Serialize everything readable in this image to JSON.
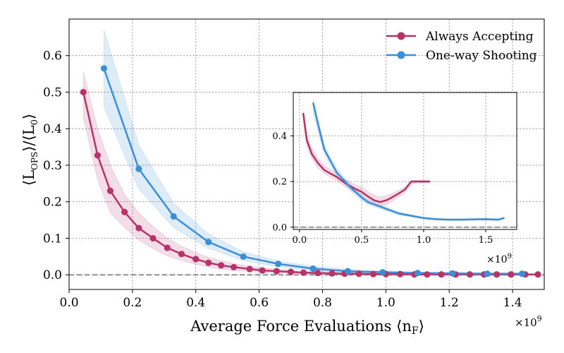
{
  "chart_data": [
    {
      "id": "main",
      "type": "line",
      "title": "",
      "xlabel": "Average Force Evaluations ⟨n",
      "xlabel_sub": "F",
      "xlabel_end": "⟩",
      "ylabel": "⟨L",
      "ylabel_sub": "OPS",
      "ylabel_mid": "⟩/⟨L",
      "ylabel_sub2": "0",
      "ylabel_end": "⟩",
      "x_offset_label": "×10",
      "x_offset_exp": "9",
      "xlim": [
        0.0,
        1.5
      ],
      "ylim": [
        -0.04,
        0.7
      ],
      "xticks": [
        0.0,
        0.2,
        0.4,
        0.6,
        0.8,
        1.0,
        1.2,
        1.4
      ],
      "xtick_labels": [
        "0.0",
        "0.2",
        "0.4",
        "0.6",
        "0.8",
        "1.0",
        "1.2",
        "1.4"
      ],
      "yticks": [
        0.0,
        0.1,
        0.2,
        0.3,
        0.4,
        0.5,
        0.6
      ],
      "ytick_labels": [
        "0.0",
        "0.1",
        "0.2",
        "0.3",
        "0.4",
        "0.5",
        "0.6"
      ],
      "grid": true,
      "reference_line": 0.0,
      "legend_position": "top-right",
      "series": [
        {
          "name": "Always Accepting",
          "color": "#b8336a",
          "x": [
            0.045,
            0.09,
            0.13,
            0.175,
            0.22,
            0.265,
            0.31,
            0.355,
            0.4,
            0.44,
            0.48,
            0.52,
            0.57,
            0.61,
            0.655,
            0.7,
            0.74,
            0.785,
            0.83,
            0.87,
            0.915,
            0.96,
            1.0,
            1.045,
            1.09,
            1.13,
            1.175,
            1.22,
            1.265,
            1.31,
            1.35,
            1.395,
            1.44,
            1.48
          ],
          "y": [
            0.5,
            0.327,
            0.23,
            0.172,
            0.128,
            0.1,
            0.074,
            0.057,
            0.043,
            0.033,
            0.026,
            0.021,
            0.016,
            0.012,
            0.01,
            0.008,
            0.006,
            0.005,
            0.004,
            0.003,
            0.003,
            0.002,
            0.002,
            0.002,
            0.001,
            0.001,
            0.001,
            0.001,
            0.001,
            0.001,
            0.001,
            0.001,
            0.001,
            0.001
          ],
          "lower": [
            0.43,
            0.26,
            0.17,
            0.13,
            0.095,
            0.072,
            0.052,
            0.039,
            0.029,
            0.021,
            0.016,
            0.012,
            0.009,
            0.006,
            0.005,
            0.004,
            0.003,
            0.002,
            0.001,
            0.0,
            0.0,
            -0.001,
            -0.001,
            -0.001,
            -0.001,
            -0.001,
            -0.001,
            -0.001,
            -0.001,
            -0.001,
            -0.001,
            -0.001,
            -0.001,
            -0.001
          ],
          "upper": [
            0.555,
            0.4,
            0.3,
            0.22,
            0.17,
            0.132,
            0.1,
            0.078,
            0.061,
            0.048,
            0.039,
            0.031,
            0.024,
            0.019,
            0.016,
            0.013,
            0.01,
            0.008,
            0.007,
            0.006,
            0.005,
            0.004,
            0.004,
            0.004,
            0.003,
            0.003,
            0.003,
            0.003,
            0.003,
            0.003,
            0.003,
            0.003,
            0.003,
            0.003
          ]
        },
        {
          "name": "One-way Shooting",
          "color": "#3a8fd6",
          "x": [
            0.11,
            0.22,
            0.33,
            0.44,
            0.55,
            0.66,
            0.77,
            0.88,
            0.99,
            1.1,
            1.21,
            1.32,
            1.43
          ],
          "y": [
            0.565,
            0.29,
            0.16,
            0.09,
            0.05,
            0.03,
            0.017,
            0.01,
            0.007,
            0.005,
            0.004,
            0.003,
            0.003
          ],
          "lower": [
            0.46,
            0.235,
            0.13,
            0.072,
            0.039,
            0.022,
            0.011,
            0.006,
            0.004,
            0.002,
            0.001,
            0.001,
            0.001
          ],
          "upper": [
            0.67,
            0.355,
            0.195,
            0.112,
            0.063,
            0.038,
            0.024,
            0.015,
            0.011,
            0.008,
            0.007,
            0.006,
            0.006
          ]
        }
      ]
    },
    {
      "id": "inset",
      "type": "line",
      "title": "",
      "xlim": [
        -0.05,
        1.75
      ],
      "ylim": [
        -0.01,
        0.59
      ],
      "xticks": [
        0.0,
        0.5,
        1.0,
        1.5
      ],
      "xtick_labels": [
        "0.0",
        "0.5",
        "1.0",
        "1.5"
      ],
      "yticks": [
        0.0,
        0.2,
        0.4
      ],
      "ytick_labels": [
        "0.0",
        "0.2",
        "0.4"
      ],
      "x_offset_label": "×10",
      "x_offset_exp": "9",
      "grid": true,
      "reference_line": 0.0,
      "series": [
        {
          "name": "Always Accepting",
          "color": "#b8336a",
          "x": [
            0.03,
            0.06,
            0.1,
            0.15,
            0.2,
            0.25,
            0.3,
            0.35,
            0.4,
            0.45,
            0.5,
            0.55,
            0.6,
            0.65,
            0.7,
            0.75,
            0.8,
            0.85,
            0.9,
            0.95,
            1.0,
            1.05
          ],
          "y": [
            0.5,
            0.38,
            0.32,
            0.28,
            0.25,
            0.235,
            0.22,
            0.2,
            0.182,
            0.168,
            0.155,
            0.135,
            0.118,
            0.11,
            0.118,
            0.132,
            0.148,
            0.165,
            0.2,
            0.2,
            0.2,
            0.2
          ],
          "lower": [
            0.46,
            0.35,
            0.3,
            0.26,
            0.235,
            0.22,
            0.205,
            0.185,
            0.167,
            0.15,
            0.135,
            0.113,
            0.097,
            0.09,
            0.098,
            0.115,
            0.133,
            0.152,
            0.19,
            0.195,
            0.195,
            0.195
          ],
          "upper": [
            0.51,
            0.4,
            0.345,
            0.3,
            0.27,
            0.252,
            0.235,
            0.215,
            0.198,
            0.185,
            0.175,
            0.157,
            0.14,
            0.132,
            0.138,
            0.148,
            0.162,
            0.177,
            0.205,
            0.205,
            0.205,
            0.205
          ]
        },
        {
          "name": "One-way Shooting",
          "color": "#3a8fd6",
          "x": [
            0.11,
            0.15,
            0.2,
            0.25,
            0.3,
            0.35,
            0.4,
            0.45,
            0.5,
            0.55,
            0.6,
            0.7,
            0.8,
            0.9,
            1.0,
            1.1,
            1.2,
            1.3,
            1.4,
            1.5,
            1.6,
            1.65
          ],
          "y": [
            0.545,
            0.45,
            0.34,
            0.29,
            0.24,
            0.21,
            0.18,
            0.155,
            0.13,
            0.11,
            0.1,
            0.08,
            0.06,
            0.05,
            0.04,
            0.035,
            0.033,
            0.033,
            0.034,
            0.035,
            0.033,
            0.04
          ],
          "lower": [
            0.5,
            0.42,
            0.32,
            0.27,
            0.225,
            0.195,
            0.167,
            0.142,
            0.118,
            0.1,
            0.09,
            0.072,
            0.054,
            0.045,
            0.036,
            0.031,
            0.029,
            0.029,
            0.03,
            0.031,
            0.029,
            0.036
          ],
          "upper": [
            0.56,
            0.47,
            0.36,
            0.305,
            0.255,
            0.225,
            0.193,
            0.168,
            0.142,
            0.12,
            0.11,
            0.088,
            0.066,
            0.055,
            0.044,
            0.039,
            0.037,
            0.037,
            0.038,
            0.039,
            0.037,
            0.044
          ]
        }
      ]
    }
  ]
}
